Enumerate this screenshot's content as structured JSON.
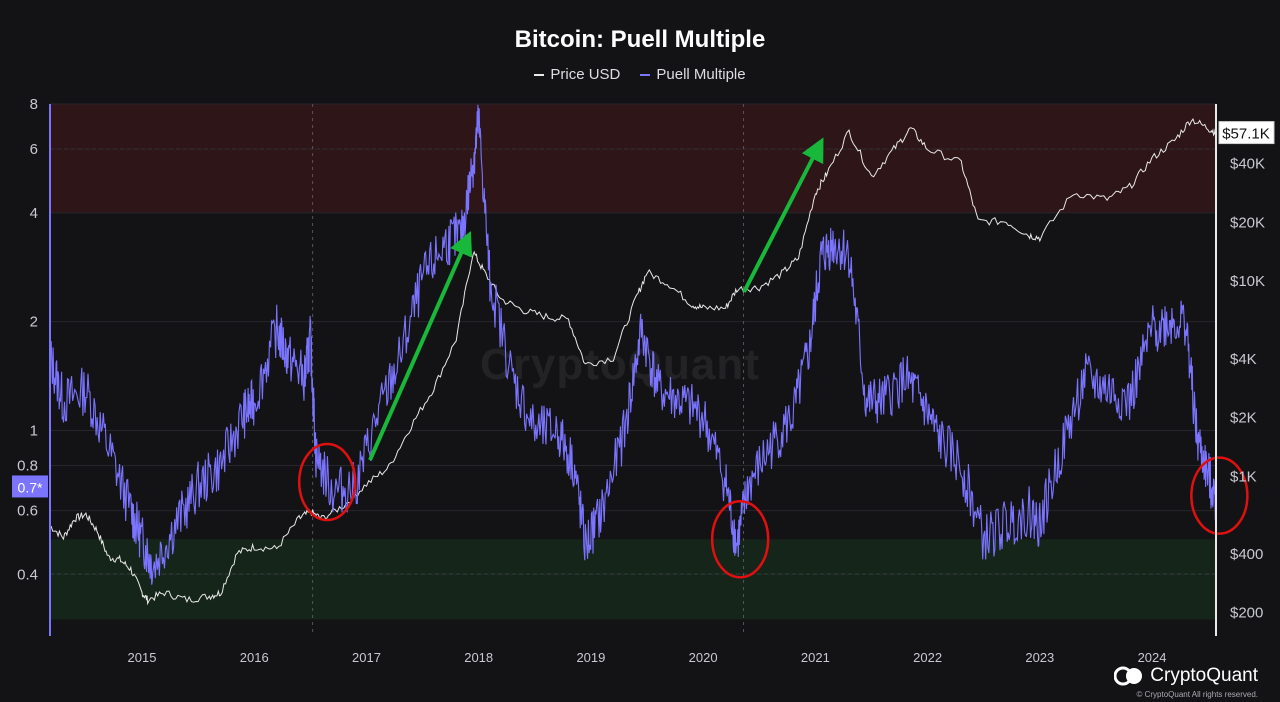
{
  "chart_data": {
    "type": "line",
    "title": "Bitcoin: Puell Multiple",
    "legend": [
      {
        "name": "Price USD",
        "color": "#e8e8e8"
      },
      {
        "name": "Puell Multiple",
        "color": "#7b74ff"
      }
    ],
    "x_ticks": [
      "2015",
      "2016",
      "2017",
      "2018",
      "2019",
      "2020",
      "2021",
      "2022",
      "2023",
      "2024"
    ],
    "x_range": [
      2014.18,
      2024.57
    ],
    "left_axis": {
      "scale": "log",
      "ticks": [
        "0.4",
        "0.6",
        "0.8",
        "1",
        "2",
        "4",
        "6",
        "8"
      ],
      "range": [
        0.27,
        8
      ]
    },
    "right_axis": {
      "scale": "log",
      "ticks": [
        "$200",
        "$400",
        "$1K",
        "$2K",
        "$4K",
        "$10K",
        "$20K",
        "$40K"
      ],
      "range": [
        150,
        80000
      ]
    },
    "current_price_label": "$57.1K",
    "current_puell_label": "0.7*",
    "zones": {
      "high": [
        4,
        8
      ],
      "low": [
        0.3,
        0.5
      ]
    },
    "reference_lines": {
      "high": 6,
      "low": 0.4
    },
    "vertical_markers": [
      "2016.52",
      "2020.36"
    ],
    "series": [
      {
        "name": "Price USD",
        "x": [
          2014.18,
          2014.3,
          2014.4,
          2014.5,
          2014.6,
          2014.7,
          2014.8,
          2014.9,
          2015.0,
          2015.05,
          2015.2,
          2015.4,
          2015.6,
          2015.7,
          2015.85,
          2016.0,
          2016.2,
          2016.4,
          2016.5,
          2016.6,
          2016.8,
          2017.0,
          2017.2,
          2017.4,
          2017.6,
          2017.8,
          2017.95,
          2018.05,
          2018.2,
          2018.4,
          2018.6,
          2018.8,
          2018.95,
          2019.2,
          2019.4,
          2019.5,
          2019.7,
          2019.9,
          2020.0,
          2020.2,
          2020.3,
          2020.5,
          2020.7,
          2020.85,
          2021.0,
          2021.1,
          2021.3,
          2021.5,
          2021.7,
          2021.85,
          2022.0,
          2022.3,
          2022.45,
          2022.7,
          2022.9,
          2023.0,
          2023.3,
          2023.6,
          2023.8,
          2024.0,
          2024.2,
          2024.35,
          2024.5,
          2024.57
        ],
        "y": [
          550,
          480,
          600,
          630,
          520,
          380,
          370,
          330,
          250,
          230,
          250,
          230,
          240,
          250,
          400,
          430,
          420,
          600,
          650,
          600,
          700,
          900,
          1100,
          1800,
          2800,
          5000,
          14000,
          11000,
          8000,
          7000,
          6500,
          6300,
          3700,
          4000,
          8000,
          11000,
          9500,
          7500,
          7200,
          7200,
          9000,
          9200,
          10800,
          13000,
          28000,
          35000,
          58000,
          34000,
          47000,
          60000,
          47000,
          40000,
          20000,
          20000,
          17000,
          16500,
          28000,
          26000,
          30000,
          42000,
          52000,
          67000,
          60000,
          57100
        ]
      },
      {
        "name": "Puell Multiple",
        "x": [
          2014.18,
          2014.3,
          2014.5,
          2014.7,
          2014.9,
          2015.0,
          2015.1,
          2015.3,
          2015.5,
          2015.7,
          2015.9,
          2016.0,
          2016.2,
          2016.3,
          2016.45,
          2016.5,
          2016.55,
          2016.7,
          2016.9,
          2017.1,
          2017.3,
          2017.5,
          2017.7,
          2017.85,
          2017.95,
          2018.0,
          2018.1,
          2018.3,
          2018.5,
          2018.7,
          2018.85,
          2018.95,
          2019.1,
          2019.3,
          2019.45,
          2019.6,
          2019.8,
          2020.0,
          2020.2,
          2020.3,
          2020.4,
          2020.6,
          2020.8,
          2020.95,
          2021.05,
          2021.15,
          2021.3,
          2021.45,
          2021.6,
          2021.8,
          2021.95,
          2022.1,
          2022.3,
          2022.5,
          2022.7,
          2022.9,
          2023.0,
          2023.2,
          2023.4,
          2023.6,
          2023.8,
          2024.0,
          2024.15,
          2024.3,
          2024.4,
          2024.5,
          2024.57
        ],
        "y": [
          1.6,
          1.2,
          1.3,
          0.9,
          0.6,
          0.5,
          0.42,
          0.55,
          0.7,
          0.8,
          1.1,
          1.2,
          1.9,
          1.6,
          1.4,
          1.8,
          0.85,
          0.68,
          0.7,
          1.1,
          1.6,
          2.6,
          3.3,
          3.5,
          5.5,
          7.2,
          2.6,
          1.4,
          1.0,
          1.0,
          0.8,
          0.48,
          0.6,
          1.0,
          1.9,
          1.3,
          1.2,
          1.1,
          0.72,
          0.48,
          0.7,
          0.9,
          1.1,
          1.7,
          3.0,
          3.3,
          3.1,
          1.2,
          1.2,
          1.4,
          1.2,
          0.95,
          0.8,
          0.5,
          0.55,
          0.6,
          0.55,
          0.9,
          1.4,
          1.3,
          1.2,
          1.9,
          2.0,
          2.0,
          0.95,
          0.75,
          0.65
        ]
      }
    ]
  },
  "brand": {
    "name": "CryptoQuant",
    "copyright": "© CryptoQuant All rights reserved.",
    "watermark": "CryptoQuant"
  }
}
